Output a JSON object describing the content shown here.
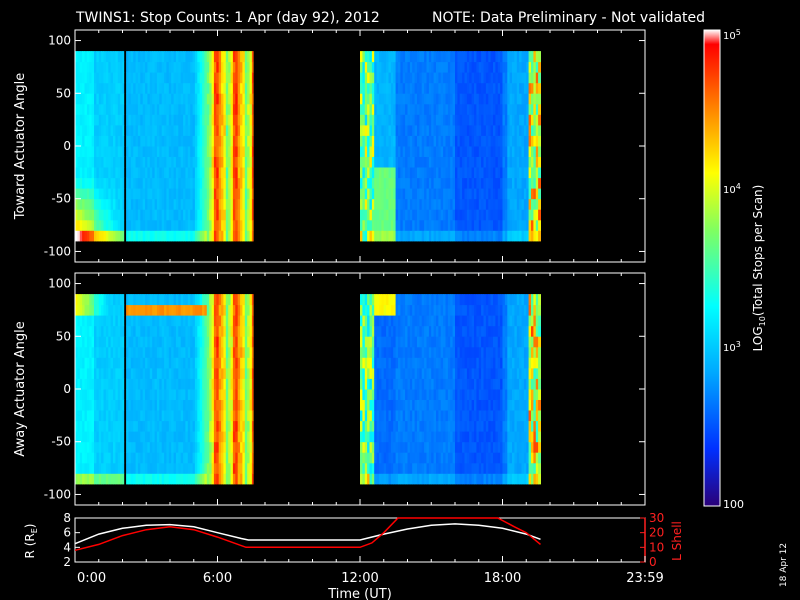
{
  "header": {
    "title": "TWINS1: Stop Counts:  1 Apr (day  92), 2012",
    "note": "NOTE: Data Preliminary - Not validated",
    "note_color": "#ff2020",
    "date_stamp": "18 Apr 12"
  },
  "colorbar": {
    "label": "LOG10(Total Stops per Scan)",
    "label_prefix": "LOG",
    "label_sub": "10",
    "label_suffix": "(Total Stops per Scan)",
    "scale": "log",
    "range": [
      100,
      100000
    ],
    "tick_labels": [
      "100",
      "10^3",
      "10^4",
      "10^5"
    ],
    "colormap": [
      "#2a0078",
      "#0030ff",
      "#00a8ff",
      "#00ffff",
      "#80ff60",
      "#ffff00",
      "#ff8000",
      "#ff0000",
      "#ffffff"
    ]
  },
  "chart_data": [
    {
      "type": "heatmap",
      "name": "toward",
      "ylabel": "Toward Actuator Angle",
      "ylim": [
        -110,
        110
      ],
      "yticks": [
        100,
        50,
        0,
        -50,
        -100
      ],
      "xlim": [
        0,
        24
      ],
      "data_blocks": [
        {
          "start": 0.0,
          "end": 2.05,
          "level": "low-mid"
        },
        {
          "start": 2.15,
          "end": 7.5,
          "level": "low-mid"
        },
        {
          "start": 12.0,
          "end": 19.6,
          "level": "low"
        }
      ]
    },
    {
      "type": "heatmap",
      "name": "away",
      "ylabel": "Away Actuator Angle",
      "ylim": [
        -110,
        110
      ],
      "yticks": [
        100,
        50,
        0,
        -50,
        -100
      ],
      "xlim": [
        0,
        24
      ],
      "data_blocks": [
        {
          "start": 0.0,
          "end": 2.05,
          "level": "low-mid"
        },
        {
          "start": 2.15,
          "end": 7.5,
          "level": "low-mid"
        },
        {
          "start": 12.0,
          "end": 19.6,
          "level": "low"
        }
      ]
    },
    {
      "type": "line",
      "name": "orbit",
      "ylabel": "R (RE)",
      "ylabel_prefix": "R (R",
      "ylabel_sub": "E",
      "ylabel_suffix": ")",
      "ylabel_right": "L Shell",
      "ylim_left": [
        2,
        8
      ],
      "yticks_left": [
        8,
        6,
        4,
        2
      ],
      "ylim_right": [
        0,
        30
      ],
      "yticks_right": [
        30,
        20,
        10,
        0
      ],
      "xlim": [
        0,
        24
      ],
      "xlabel": "Time (UT)",
      "xtick_labels": [
        "0:00",
        "6:00",
        "12:00",
        "18:00",
        "23:59"
      ],
      "xtick_values": [
        0,
        6,
        12,
        18,
        24
      ],
      "series": [
        {
          "name": "R",
          "color": "#ffffff",
          "axis": "left",
          "x": [
            0,
            1,
            2,
            3,
            4,
            5,
            6,
            7,
            7.3,
            12,
            13,
            14,
            15,
            16,
            17,
            18,
            19,
            19.6
          ],
          "y": [
            4.5,
            5.8,
            6.6,
            7.0,
            7.1,
            6.8,
            6.0,
            5.2,
            5.0,
            5.0,
            5.8,
            6.5,
            7.0,
            7.2,
            7.0,
            6.6,
            5.8,
            5.1
          ]
        },
        {
          "name": "L Shell",
          "color": "#ff0000",
          "axis": "right",
          "x": [
            0,
            1,
            2,
            3,
            4,
            5,
            6,
            7.2,
            12,
            12.5,
            13,
            13.6,
            17.8,
            18.5,
            19,
            19.6
          ],
          "y": [
            8,
            12,
            18,
            22,
            24,
            22,
            17,
            10,
            10,
            13,
            20,
            30,
            30,
            24,
            20,
            12
          ]
        }
      ]
    }
  ]
}
